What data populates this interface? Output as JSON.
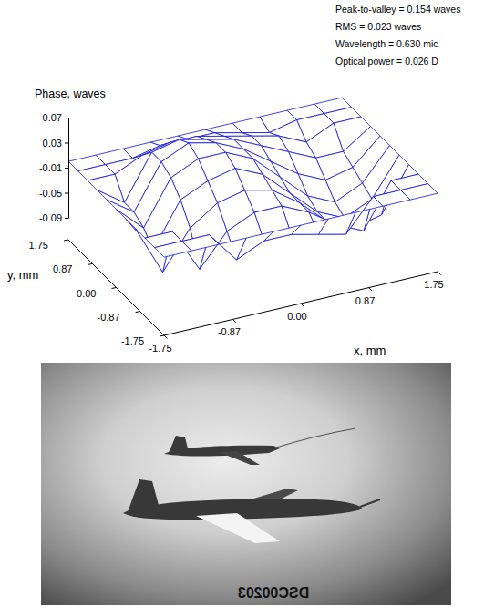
{
  "chart_data": {
    "type": "surface",
    "zlabel": "Phase, waves",
    "xlabel": "x, mm",
    "ylabel": "y, mm",
    "annotations": [
      "Peak-to-valley = 0.154 waves",
      "RMS = 0.023 waves",
      "Wavelength = 0.630 mic",
      "Optical power = 0.026 D"
    ],
    "color": "#1414e6",
    "xlim": [
      -1.75,
      1.75
    ],
    "ylim": [
      -1.75,
      1.75
    ],
    "zlim": [
      -0.09,
      0.07
    ],
    "xticks": [
      -1.75,
      -0.87,
      {
        "value": 0,
        "label": "0.00"
      },
      0.87,
      1.75
    ],
    "yticks": [
      -1.75,
      -0.87,
      {
        "value": 0,
        "label": "0.00"
      },
      0.87,
      1.75
    ],
    "zticks": [
      0.07,
      0.03,
      -0.01,
      -0.05,
      -0.09
    ],
    "x": [
      -1.75,
      -1.4,
      -1.05,
      -0.7,
      -0.35,
      0,
      0.35,
      0.7,
      1.05,
      1.4,
      1.75
    ],
    "y": [
      -1.75,
      -1.4,
      -1.05,
      -0.7,
      -0.35,
      0,
      0.35,
      0.7,
      1.05,
      1.4,
      1.75
    ],
    "z": [
      [
        0,
        0,
        0,
        0,
        0,
        0,
        0,
        0,
        0,
        0,
        0
      ],
      [
        0,
        0,
        0,
        -0.05,
        -0.03,
        -0.03,
        -0.04,
        -0.05,
        0,
        0,
        0
      ],
      [
        0,
        0,
        -0.07,
        -0.02,
        0,
        0,
        -0.02,
        -0.05,
        -0.07,
        0,
        0
      ],
      [
        0,
        -0.08,
        -0.02,
        0.01,
        0.02,
        0.01,
        -0.02,
        -0.06,
        -0.08,
        -0.07,
        0
      ],
      [
        0,
        -0.06,
        0.01,
        0.03,
        0.04,
        0.02,
        -0.02,
        -0.06,
        -0.08,
        -0.06,
        0
      ],
      [
        0,
        -0.04,
        0.03,
        0.05,
        0.05,
        0.03,
        -0.01,
        -0.05,
        -0.07,
        -0.05,
        0
      ],
      [
        0,
        -0.03,
        0.04,
        0.06,
        0.05,
        0.03,
        0,
        -0.03,
        -0.05,
        -0.04,
        0
      ],
      [
        0,
        -0.03,
        0.04,
        0.05,
        0.04,
        0.03,
        0.01,
        -0.01,
        -0.03,
        -0.03,
        0
      ],
      [
        0,
        0,
        0.02,
        0.03,
        0.03,
        0.02,
        0.01,
        0,
        -0.02,
        0,
        0
      ],
      [
        0,
        0,
        0,
        0.01,
        0.01,
        0.01,
        0,
        -0.01,
        0,
        0,
        0
      ],
      [
        0,
        0,
        0,
        0,
        0,
        0,
        0,
        0,
        0,
        0,
        0
      ]
    ]
  },
  "photo": {
    "stamp": "DSC00203"
  }
}
